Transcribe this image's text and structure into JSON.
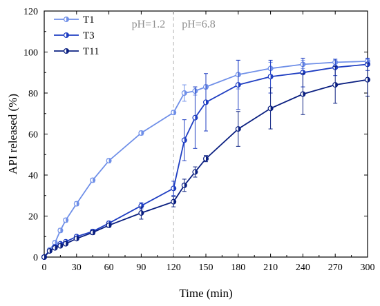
{
  "chart_data": {
    "type": "line",
    "xlabel": "Time (min)",
    "ylabel": "API released (%)",
    "xlim": [
      0,
      300
    ],
    "ylim": [
      0,
      120
    ],
    "xticks": [
      0,
      30,
      60,
      90,
      120,
      150,
      180,
      210,
      240,
      270,
      300
    ],
    "yticks": [
      0,
      20,
      40,
      60,
      80,
      100,
      120
    ],
    "grid": false,
    "legend_position": "top-left",
    "annotations": [
      {
        "text": "pH=1.2"
      },
      {
        "text": "pH=6.8"
      }
    ],
    "divider_x": 120,
    "series": [
      {
        "name": "T1",
        "color": "#6f8fe8",
        "x": [
          0,
          5,
          10,
          15,
          20,
          30,
          45,
          60,
          90,
          120,
          130,
          140,
          150,
          180,
          210,
          240,
          270,
          300
        ],
        "y": [
          0,
          3.5,
          7,
          13,
          18,
          26,
          37.5,
          47,
          60.5,
          70.5,
          80,
          81,
          83,
          89,
          92,
          94,
          95,
          95.5
        ],
        "err": [
          0,
          0.5,
          1,
          1,
          1,
          1,
          1,
          1,
          1,
          1,
          4,
          2,
          1,
          7,
          3,
          2,
          1.5,
          1
        ]
      },
      {
        "name": "T3",
        "color": "#1f3ec2",
        "x": [
          0,
          5,
          10,
          15,
          20,
          30,
          45,
          60,
          90,
          120,
          130,
          140,
          150,
          180,
          210,
          240,
          270,
          300
        ],
        "y": [
          0,
          3,
          5,
          6.5,
          7.5,
          10,
          12.5,
          16.5,
          25,
          33.5,
          57,
          68,
          75.5,
          84,
          88,
          90,
          92.5,
          94
        ],
        "err": [
          0,
          0.5,
          0.5,
          0.5,
          0.5,
          0.5,
          1,
          1,
          1.5,
          3.5,
          10,
          15,
          14,
          12,
          8,
          7,
          4,
          3
        ]
      },
      {
        "name": "T11",
        "color": "#0a1f80",
        "x": [
          0,
          5,
          10,
          15,
          20,
          30,
          45,
          60,
          90,
          120,
          130,
          140,
          150,
          180,
          210,
          240,
          270,
          300
        ],
        "y": [
          0,
          3,
          4.5,
          5.5,
          6.5,
          9,
          12,
          15.5,
          21.5,
          27,
          35,
          41.5,
          48,
          62.5,
          72.5,
          79.5,
          84,
          86.5
        ],
        "err": [
          0,
          0.5,
          0.5,
          0.5,
          0.5,
          0.5,
          1,
          1,
          3,
          2.5,
          3,
          2.5,
          1.5,
          8.5,
          10,
          10,
          9,
          8
        ]
      }
    ]
  }
}
